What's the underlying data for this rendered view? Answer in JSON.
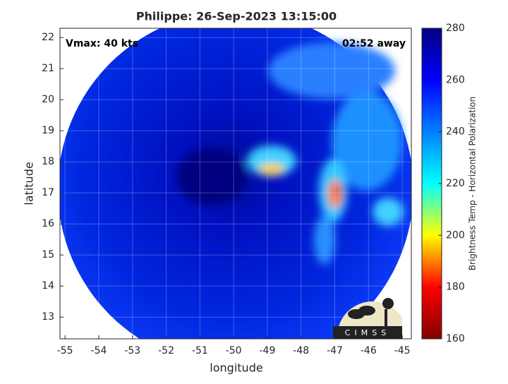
{
  "chart_data": {
    "type": "image",
    "title": "Philippe: 26-Sep-2023 13:15:00",
    "xlabel": "longitude",
    "ylabel": "latitude",
    "xlim": [
      -55.15,
      -44.73
    ],
    "ylim": [
      12.3,
      22.3
    ],
    "xticks": [
      -55,
      -54,
      -53,
      -52,
      -51,
      -50,
      -49,
      -48,
      -47,
      -46,
      -45
    ],
    "yticks": [
      13,
      14,
      15,
      16,
      17,
      18,
      19,
      20,
      21,
      22
    ],
    "grid": true,
    "annotations": [
      {
        "text": "Vmax: 40 kts",
        "corner": "upper left"
      },
      {
        "text": "02:52 away",
        "corner": "upper right"
      }
    ],
    "colorbar": {
      "label": "Brightness Temp - Horizontal Polarization",
      "lim": [
        160,
        280
      ],
      "ticks": [
        160,
        180,
        200,
        220,
        240,
        260,
        280
      ],
      "colors": [
        "#800000",
        "#ff0000",
        "#ffff00",
        "#00ffff",
        "#0080ff",
        "#0000ff",
        "#000080"
      ]
    },
    "logo_text": "CIMSS"
  }
}
